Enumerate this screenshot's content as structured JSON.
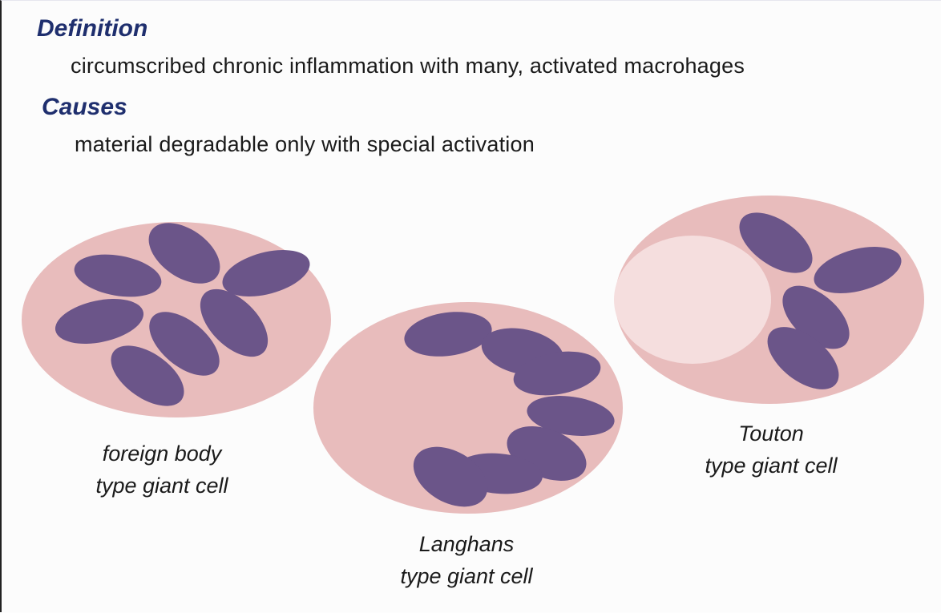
{
  "definition": {
    "heading": "Definition",
    "text": "circumscribed chronic inflammation with many, activated macrohages"
  },
  "causes": {
    "heading": "Causes",
    "text": "material degradable only with special activation"
  },
  "cells": [
    {
      "caption_line1": "foreign body",
      "caption_line2": "type giant cell"
    },
    {
      "caption_line1": "Langhans",
      "caption_line2": "type giant cell"
    },
    {
      "caption_line1": "Touton",
      "caption_line2": "type giant cell"
    }
  ],
  "colors": {
    "heading": "#1f2f6e",
    "cytoplasm": "#e8bcbc",
    "nucleus": "#6b5589",
    "lipid_vacuole": "#f5dede"
  }
}
